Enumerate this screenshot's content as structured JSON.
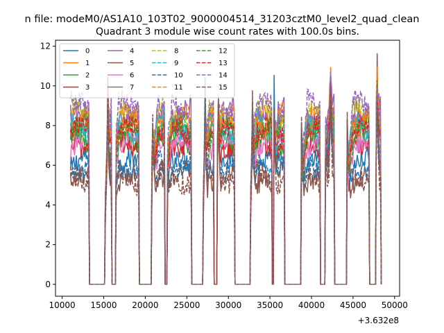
{
  "chart_data": {
    "type": "line",
    "suptitle": "n file: modeM0/AS1A10_103T02_9000004514_31203cztM0_level2_quad_clean",
    "title": "Quadrant 3 module wise count rates with 100.0s bins.",
    "xlabel": "",
    "ylabel": "",
    "x_offset_label": "+3.632e8",
    "xlim": [
      9200,
      50600
    ],
    "ylim": [
      -0.6,
      12.3
    ],
    "xticks": [
      10000,
      15000,
      20000,
      25000,
      30000,
      35000,
      40000,
      45000,
      50000
    ],
    "xtick_labels": [
      "10000",
      "15000",
      "20000",
      "25000",
      "30000",
      "35000",
      "40000",
      "45000",
      "50000"
    ],
    "yticks": [
      0,
      2,
      4,
      6,
      8,
      10,
      12
    ],
    "ytick_labels": [
      "0",
      "2",
      "4",
      "6",
      "8",
      "10",
      "12"
    ],
    "grid": false,
    "legend": {
      "placement": "top-left",
      "columns": 4
    },
    "on_intervals": [
      [
        11000,
        13200
      ],
      [
        15200,
        15900
      ],
      [
        16500,
        19200
      ],
      [
        20800,
        22300
      ],
      [
        22700,
        25500
      ],
      [
        27000,
        28200
      ],
      [
        28700,
        30700
      ],
      [
        32700,
        35200
      ],
      [
        35500,
        36700
      ],
      [
        38800,
        41000
      ],
      [
        41700,
        42700
      ],
      [
        44300,
        46900
      ],
      [
        47800,
        48300
      ]
    ],
    "dip_times": [
      15200,
      16100,
      20800,
      22500,
      27000,
      28500,
      32700,
      35300,
      38800,
      41300,
      44300
    ],
    "spike_times": [
      15500,
      16200,
      20900,
      22500,
      27200,
      28800,
      32900,
      35500,
      38800,
      41600,
      42300,
      44300,
      47900
    ],
    "series": [
      {
        "name": "0",
        "color": "#1f77b4",
        "dash": "solid",
        "level": 6.0
      },
      {
        "name": "1",
        "color": "#ff7f0e",
        "dash": "solid",
        "level": 8.2
      },
      {
        "name": "2",
        "color": "#2ca02c",
        "dash": "solid",
        "level": 7.4
      },
      {
        "name": "3",
        "color": "#d62728",
        "dash": "solid",
        "level": 7.2
      },
      {
        "name": "4",
        "color": "#9467bd",
        "dash": "solid",
        "level": 8.8
      },
      {
        "name": "5",
        "color": "#8c564b",
        "dash": "solid",
        "level": 5.5
      },
      {
        "name": "6",
        "color": "#e377c2",
        "dash": "solid",
        "level": 7.0
      },
      {
        "name": "7",
        "color": "#7f7f7f",
        "dash": "solid",
        "level": 7.6
      },
      {
        "name": "8",
        "color": "#bcbd22",
        "dash": "dashed",
        "level": 8.6
      },
      {
        "name": "9",
        "color": "#17becf",
        "dash": "dashed",
        "level": 8.0
      },
      {
        "name": "10",
        "color": "#1f77b4",
        "dash": "dashed",
        "level": 6.1
      },
      {
        "name": "11",
        "color": "#ff7f0e",
        "dash": "dashed",
        "level": 8.3
      },
      {
        "name": "12",
        "color": "#2ca02c",
        "dash": "dashed",
        "level": 7.7
      },
      {
        "name": "13",
        "color": "#d62728",
        "dash": "dashed",
        "level": 7.6
      },
      {
        "name": "14",
        "color": "#9467bd",
        "dash": "dashed",
        "level": 8.9
      },
      {
        "name": "15",
        "color": "#8c564b",
        "dash": "dashed",
        "level": 5.4
      }
    ]
  }
}
